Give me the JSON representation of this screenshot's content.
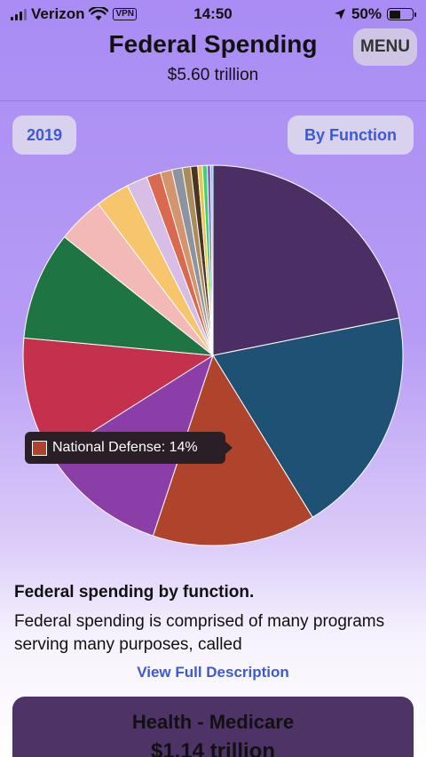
{
  "status_bar": {
    "carrier": "Verizon",
    "vpn": "VPN",
    "time": "14:50",
    "battery": "50%",
    "battery_level": 0.5
  },
  "header": {
    "title": "Federal Spending",
    "total": "$5.60 trillion",
    "menu_label": "MENU"
  },
  "controls": {
    "year": "2019",
    "grouping": "By Function"
  },
  "chart_data": {
    "type": "pie",
    "colors": {
      "slices": [
        "#4b2f64",
        "#1f5174",
        "#b0432c",
        "#8b3ea8",
        "#c5304d",
        "#1e7543",
        "#f3b9b6",
        "#f7c66c",
        "#d8bde6",
        "#d9694f",
        "#d4956e",
        "#8d939f",
        "#a98b5c",
        "#4d3320",
        "#e6c84a",
        "#3fcf74",
        "#8a61c7",
        "#6ec6f0"
      ],
      "tooltip_bg": "#2a1e27"
    },
    "slices": [
      {
        "value": 22.0
      },
      {
        "value": 19.5
      },
      {
        "value": 14.0
      },
      {
        "value": 11.0
      },
      {
        "value": 10.5
      },
      {
        "value": 9.3
      },
      {
        "value": 4.0
      },
      {
        "value": 2.9
      },
      {
        "value": 1.8
      },
      {
        "value": 1.2
      },
      {
        "value": 1.0
      },
      {
        "value": 0.9
      },
      {
        "value": 0.7
      },
      {
        "value": 0.6
      },
      {
        "value": 0.4
      },
      {
        "value": 0.4
      },
      {
        "value": 0.3
      },
      {
        "value": 0.2
      }
    ],
    "tooltip": {
      "label": "National Defense: 14%"
    }
  },
  "description": {
    "heading": "Federal spending by function.",
    "text": "Federal spending is comprised of many programs serving many purposes, called",
    "link": "View Full Description"
  },
  "card": {
    "title": "Health - Medicare",
    "amount": "$1.14 trillion"
  }
}
